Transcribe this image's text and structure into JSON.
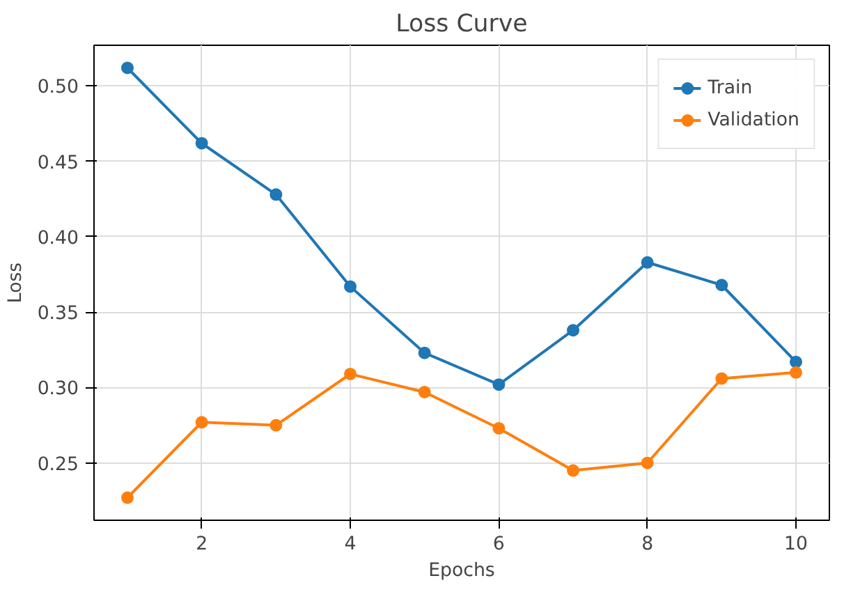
{
  "chart_data": {
    "type": "line",
    "title": "Loss Curve",
    "xlabel": "Epochs",
    "ylabel": "Loss",
    "x": [
      1,
      2,
      3,
      4,
      5,
      6,
      7,
      8,
      9,
      10
    ],
    "series": [
      {
        "name": "Train",
        "color": "#1f77b4",
        "values": [
          0.512,
          0.462,
          0.428,
          0.367,
          0.323,
          0.302,
          0.338,
          0.383,
          0.368,
          0.317
        ]
      },
      {
        "name": "Validation",
        "color": "#ff7f0e",
        "values": [
          0.227,
          0.277,
          0.275,
          0.309,
          0.297,
          0.273,
          0.245,
          0.25,
          0.306,
          0.31
        ]
      }
    ],
    "xlim": [
      0.55,
      10.45
    ],
    "ylim": [
      0.212,
      0.527
    ],
    "xticks": [
      2,
      4,
      6,
      8,
      10
    ],
    "yticks": [
      {
        "value": 0.25,
        "label": "0.25"
      },
      {
        "value": 0.3,
        "label": "0.30"
      },
      {
        "value": 0.35,
        "label": "0.35"
      },
      {
        "value": 0.4,
        "label": "0.40"
      },
      {
        "value": 0.45,
        "label": "0.45"
      },
      {
        "value": 0.5,
        "label": "0.50"
      }
    ],
    "grid": true,
    "legend": "top right",
    "marker": "circle",
    "line_style": "solid"
  }
}
